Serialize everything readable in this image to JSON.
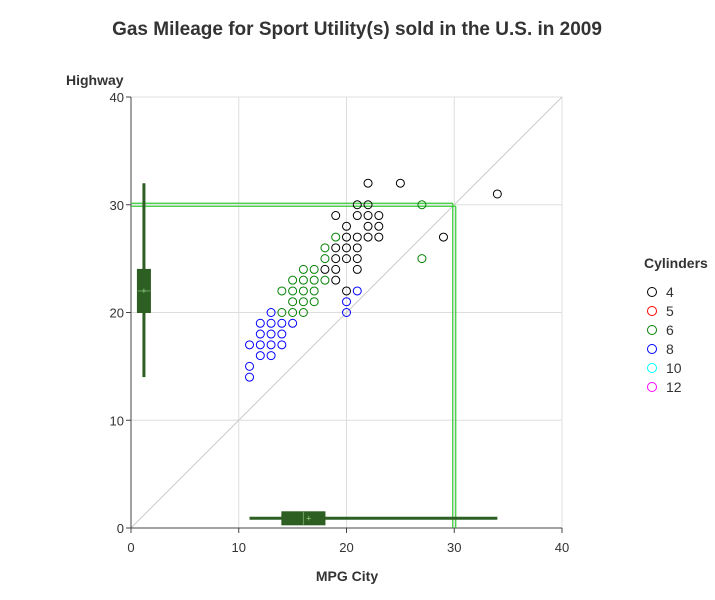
{
  "chart_data": {
    "type": "scatter",
    "title": "Gas Mileage for Sport Utility(s) sold in the U.S. in 2009",
    "xlabel": "MPG City",
    "ylabel": "Highway",
    "xlim": [
      0,
      40
    ],
    "ylim": [
      0,
      40
    ],
    "xticks": [
      "0",
      "10",
      "20",
      "30",
      "40"
    ],
    "yticks": [
      "0",
      "10",
      "20",
      "30",
      "40"
    ],
    "grid": true,
    "reference_line": {
      "type": "diagonal",
      "from": [
        0,
        0
      ],
      "to": [
        40,
        40
      ],
      "color": "#cccccc"
    },
    "guide_lines": {
      "x": 30,
      "y": 30,
      "color": "#33cc33"
    },
    "legend": {
      "title": "Cylinders",
      "placement": "right",
      "entries": [
        {
          "label": "4",
          "color": "#000000"
        },
        {
          "label": "5",
          "color": "#ff0000"
        },
        {
          "label": "6",
          "color": "#008000"
        },
        {
          "label": "8",
          "color": "#0000ff"
        },
        {
          "label": "10",
          "color": "#00ffff"
        },
        {
          "label": "12",
          "color": "#ff00ff"
        }
      ]
    },
    "series": [
      {
        "name": "4",
        "color": "#000000",
        "points": [
          [
            19,
            29
          ],
          [
            19,
            26
          ],
          [
            19,
            25
          ],
          [
            19,
            24
          ],
          [
            19,
            23
          ],
          [
            20,
            28
          ],
          [
            20,
            27
          ],
          [
            20,
            26
          ],
          [
            20,
            25
          ],
          [
            20,
            22
          ],
          [
            21,
            30
          ],
          [
            21,
            29
          ],
          [
            21,
            27
          ],
          [
            21,
            26
          ],
          [
            21,
            25
          ],
          [
            21,
            24
          ],
          [
            22,
            32
          ],
          [
            22,
            30
          ],
          [
            22,
            29
          ],
          [
            22,
            28
          ],
          [
            22,
            27
          ],
          [
            23,
            29
          ],
          [
            23,
            28
          ],
          [
            23,
            27
          ],
          [
            25,
            32
          ],
          [
            29,
            27
          ],
          [
            34,
            31
          ],
          [
            18,
            24
          ]
        ]
      },
      {
        "name": "6",
        "color": "#008000",
        "points": [
          [
            14,
            22
          ],
          [
            14,
            20
          ],
          [
            15,
            23
          ],
          [
            15,
            22
          ],
          [
            15,
            21
          ],
          [
            15,
            20
          ],
          [
            16,
            24
          ],
          [
            16,
            23
          ],
          [
            16,
            22
          ],
          [
            16,
            21
          ],
          [
            16,
            20
          ],
          [
            17,
            24
          ],
          [
            17,
            23
          ],
          [
            17,
            22
          ],
          [
            17,
            21
          ],
          [
            18,
            26
          ],
          [
            18,
            25
          ],
          [
            18,
            23
          ],
          [
            19,
            27
          ],
          [
            27,
            30
          ],
          [
            27,
            25
          ]
        ]
      },
      {
        "name": "8",
        "color": "#0000ff",
        "points": [
          [
            11,
            17
          ],
          [
            11,
            15
          ],
          [
            11,
            14
          ],
          [
            12,
            19
          ],
          [
            12,
            18
          ],
          [
            12,
            17
          ],
          [
            12,
            16
          ],
          [
            13,
            20
          ],
          [
            13,
            19
          ],
          [
            13,
            18
          ],
          [
            13,
            17
          ],
          [
            13,
            16
          ],
          [
            14,
            19
          ],
          [
            14,
            18
          ],
          [
            14,
            17
          ],
          [
            15,
            19
          ],
          [
            20,
            21
          ],
          [
            20,
            20
          ],
          [
            21,
            22
          ]
        ]
      }
    ],
    "marginal_boxplots": {
      "color": "#2d5e22",
      "highway": {
        "min": 14,
        "q1": 20,
        "median": 22,
        "mean": 22,
        "q3": 24,
        "max": 32
      },
      "city": {
        "min": 11,
        "q1": 14,
        "median": 16,
        "mean": 16.5,
        "q3": 18,
        "max": 34
      }
    }
  }
}
